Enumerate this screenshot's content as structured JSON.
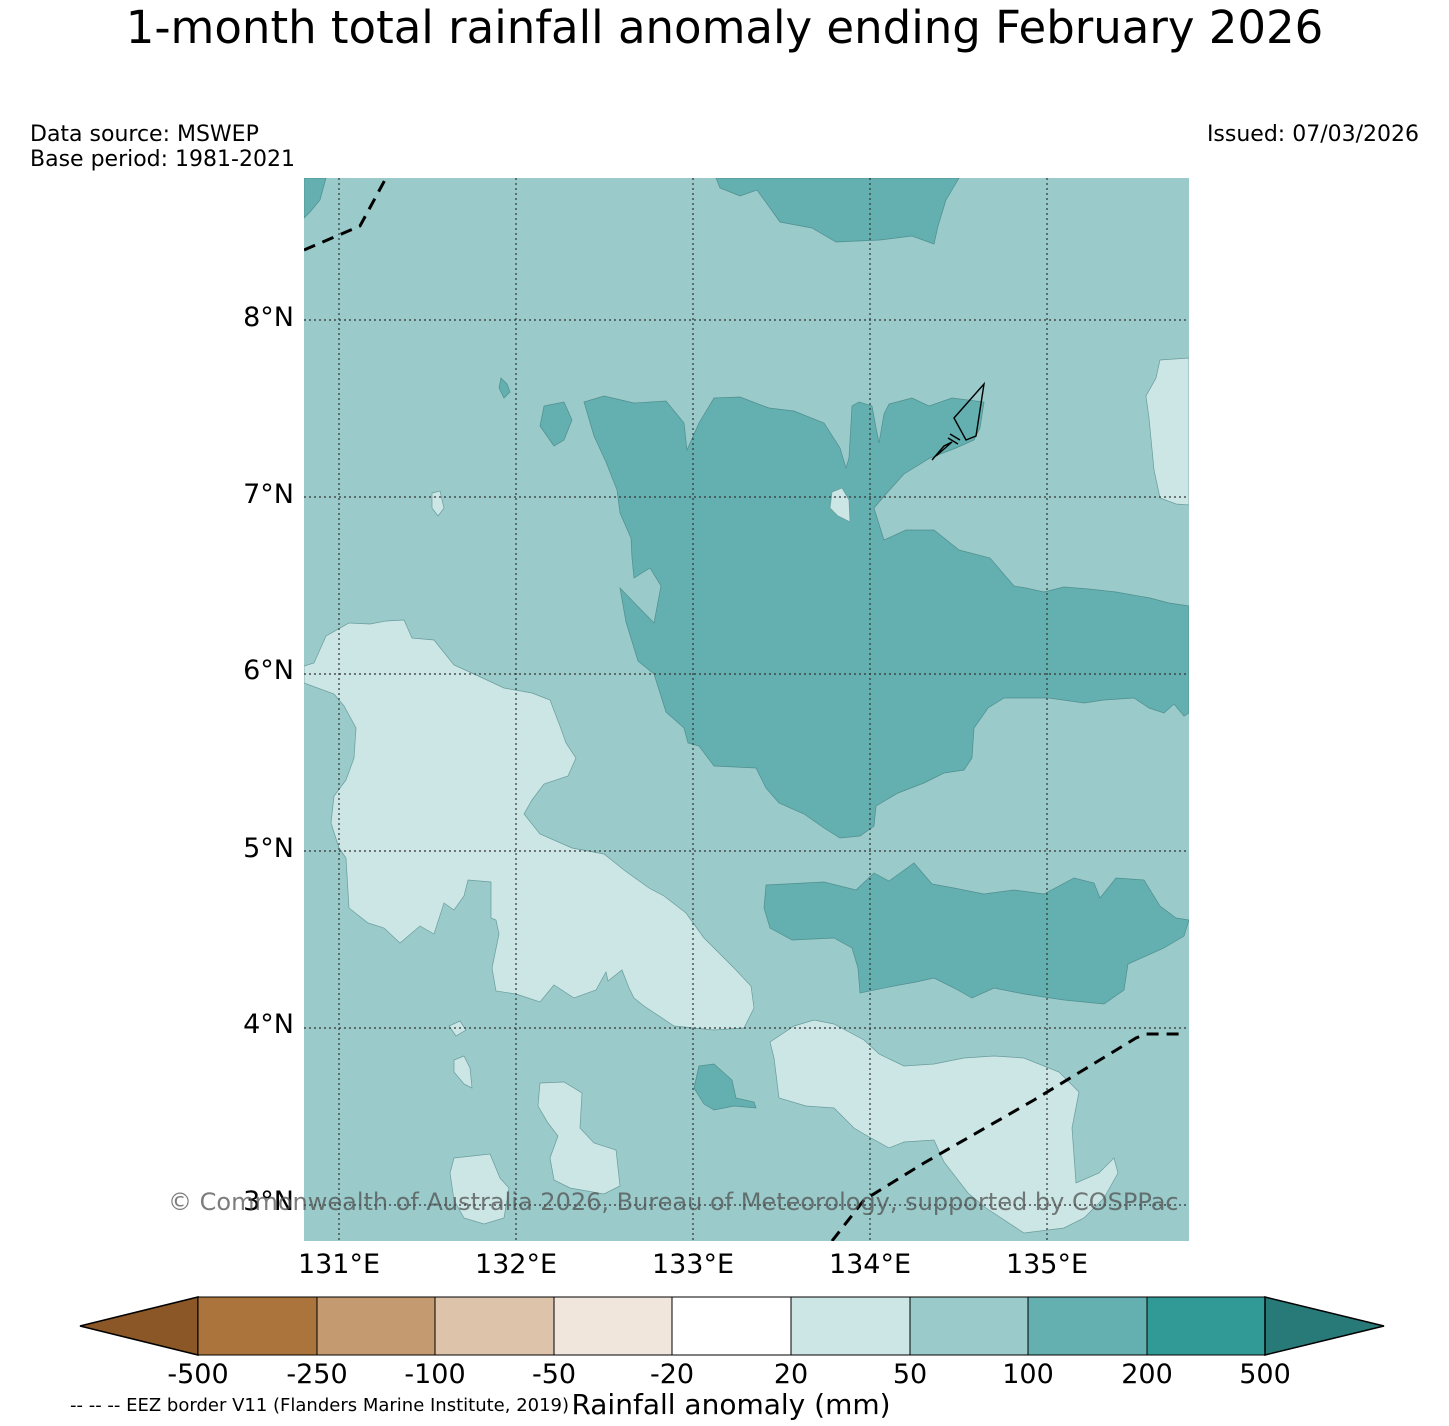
{
  "title": "1-month total rainfall anomaly ending February 2026",
  "data_source": "Data source: MSWEP",
  "base_period": "Base period: 1981-2021",
  "issued": "Issued: 07/03/2026",
  "copyright": "© Commonwealth of Australia 2026, Bureau of Meteorology, supported by COSPPac",
  "eez_legend": "-- -- -- EEZ border V11 (Flanders Marine Institute, 2019)",
  "map": {
    "lat_labels": [
      "8°N",
      "7°N",
      "6°N",
      "5°N",
      "4°N",
      "3°N"
    ],
    "lon_labels": [
      "131°E",
      "132°E",
      "133°E",
      "134°E",
      "135°E"
    ],
    "lon_range": [
      130.8,
      135.8
    ],
    "lat_range": [
      2.8,
      8.8
    ]
  },
  "colorbar": {
    "label": "Rainfall anomaly (mm)",
    "ticks": [
      "-500",
      "-250",
      "-100",
      "-50",
      "-20",
      "20",
      "50",
      "100",
      "200",
      "500"
    ],
    "colors": {
      "below_min": "#8c5726",
      "neg_500_250": "#ab743d",
      "neg_250_100": "#c49a70",
      "neg_100_50": "#dcc3aa",
      "neg_50_20": "#f0e6dc",
      "neutral": "#ffffff",
      "pos_20_50": "#cce5e5",
      "pos_50_100": "#9acaca",
      "pos_100_200": "#64afaf",
      "pos_200_500": "#329a96",
      "above_max": "#287a78"
    }
  }
}
